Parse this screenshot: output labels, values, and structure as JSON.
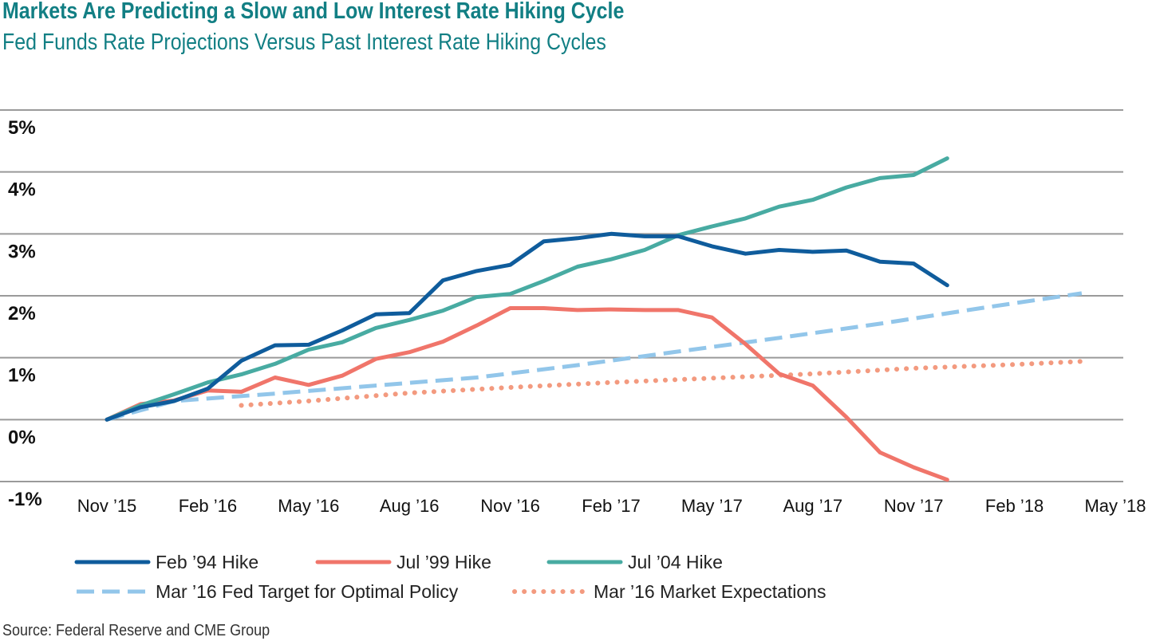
{
  "chart_data": {
    "type": "line",
    "title": "Markets Are Predicting a Slow and Low Interest Rate Hiking Cycle",
    "subtitle": "Fed Funds Rate Projections Versus Past Interest Rate Hiking Cycles",
    "source": "Source: Federal Reserve and CME Group",
    "xlabel": "",
    "ylabel": "",
    "ylim": [
      -1,
      5
    ],
    "yticks": [
      {
        "value": 5,
        "label": "5%"
      },
      {
        "value": 4,
        "label": "4%"
      },
      {
        "value": 3,
        "label": "3%"
      },
      {
        "value": 2,
        "label": "2%"
      },
      {
        "value": 1,
        "label": "1%"
      },
      {
        "value": 0,
        "label": "0%"
      },
      {
        "value": -1,
        "label": "-1%"
      }
    ],
    "xlim": [
      "2015-11",
      "2018-05"
    ],
    "xticks": [
      {
        "value": "2015-11",
        "label": "Nov ’15"
      },
      {
        "value": "2016-02",
        "label": "Feb ’16"
      },
      {
        "value": "2016-05",
        "label": "May ’16"
      },
      {
        "value": "2016-08",
        "label": "Aug ’16"
      },
      {
        "value": "2016-11",
        "label": "Nov ’16"
      },
      {
        "value": "2017-02",
        "label": "Feb ’17"
      },
      {
        "value": "2017-05",
        "label": "May ’17"
      },
      {
        "value": "2017-08",
        "label": "Aug ’17"
      },
      {
        "value": "2017-11",
        "label": "Nov ’17"
      },
      {
        "value": "2018-02",
        "label": "Feb ’18"
      },
      {
        "value": "2018-05",
        "label": "May ’18"
      }
    ],
    "grid": true,
    "legend_position": "bottom",
    "series": [
      {
        "name": "Feb ’94 Hike",
        "color": "#0f5c9c",
        "style": "solid",
        "x": [
          "2015-11",
          "2015-12",
          "2016-01",
          "2016-02",
          "2016-03",
          "2016-04",
          "2016-05",
          "2016-06",
          "2016-07",
          "2016-08",
          "2016-09",
          "2016-10",
          "2016-11",
          "2016-12",
          "2017-01",
          "2017-02",
          "2017-03",
          "2017-04",
          "2017-05",
          "2017-06",
          "2017-07",
          "2017-08",
          "2017-09",
          "2017-10",
          "2017-11",
          "2017-12"
        ],
        "values": [
          0.0,
          0.2,
          0.3,
          0.5,
          0.95,
          1.2,
          1.21,
          1.44,
          1.7,
          1.72,
          2.25,
          2.4,
          2.5,
          2.88,
          2.93,
          3.0,
          2.96,
          2.96,
          2.8,
          2.68,
          2.74,
          2.71,
          2.73,
          2.55,
          2.52,
          2.17
        ]
      },
      {
        "name": "Jul ’99 Hike",
        "color": "#f0756a",
        "style": "solid",
        "x": [
          "2015-11",
          "2015-12",
          "2016-01",
          "2016-02",
          "2016-03",
          "2016-04",
          "2016-05",
          "2016-06",
          "2016-07",
          "2016-08",
          "2016-09",
          "2016-10",
          "2016-11",
          "2016-12",
          "2017-01",
          "2017-02",
          "2017-03",
          "2017-04",
          "2017-05",
          "2017-06",
          "2017-07",
          "2017-08",
          "2017-09",
          "2017-10",
          "2017-11",
          "2017-12"
        ],
        "values": [
          0.0,
          0.25,
          0.31,
          0.47,
          0.45,
          0.68,
          0.56,
          0.71,
          0.98,
          1.09,
          1.26,
          1.52,
          1.8,
          1.8,
          1.77,
          1.78,
          1.77,
          1.77,
          1.65,
          1.22,
          0.74,
          0.55,
          0.04,
          -0.53,
          -0.77,
          -0.97
        ]
      },
      {
        "name": "Jul ’04 Hike",
        "color": "#48aba2",
        "style": "solid",
        "x": [
          "2015-11",
          "2015-12",
          "2016-01",
          "2016-02",
          "2016-03",
          "2016-04",
          "2016-05",
          "2016-06",
          "2016-07",
          "2016-08",
          "2016-09",
          "2016-10",
          "2016-11",
          "2016-12",
          "2017-01",
          "2017-02",
          "2017-03",
          "2017-04",
          "2017-05",
          "2017-06",
          "2017-07",
          "2017-08",
          "2017-09",
          "2017-10",
          "2017-11",
          "2017-12"
        ],
        "values": [
          0.0,
          0.23,
          0.41,
          0.6,
          0.73,
          0.9,
          1.13,
          1.25,
          1.48,
          1.61,
          1.76,
          1.98,
          2.03,
          2.24,
          2.47,
          2.59,
          2.74,
          2.98,
          3.12,
          3.25,
          3.44,
          3.55,
          3.75,
          3.9,
          3.95,
          4.22
        ]
      },
      {
        "name": "Mar ’16 Fed Target for Optimal Policy",
        "color": "#92c6ea",
        "style": "dashed",
        "x": [
          "2015-11",
          "2016-01",
          "2016-04",
          "2016-07",
          "2016-10",
          "2017-01",
          "2017-04",
          "2017-07",
          "2017-10",
          "2018-01",
          "2018-04"
        ],
        "values": [
          0.0,
          0.3,
          0.42,
          0.55,
          0.68,
          0.88,
          1.1,
          1.32,
          1.55,
          1.8,
          2.04
        ]
      },
      {
        "name": "Mar ’16 Market Expectations",
        "color": "#f39a7f",
        "style": "dotted",
        "x": [
          "2016-03",
          "2016-05",
          "2016-08",
          "2016-11",
          "2017-02",
          "2017-05",
          "2017-08",
          "2017-11",
          "2018-02",
          "2018-04"
        ],
        "values": [
          0.23,
          0.3,
          0.43,
          0.52,
          0.6,
          0.67,
          0.74,
          0.83,
          0.89,
          0.94
        ]
      }
    ]
  }
}
